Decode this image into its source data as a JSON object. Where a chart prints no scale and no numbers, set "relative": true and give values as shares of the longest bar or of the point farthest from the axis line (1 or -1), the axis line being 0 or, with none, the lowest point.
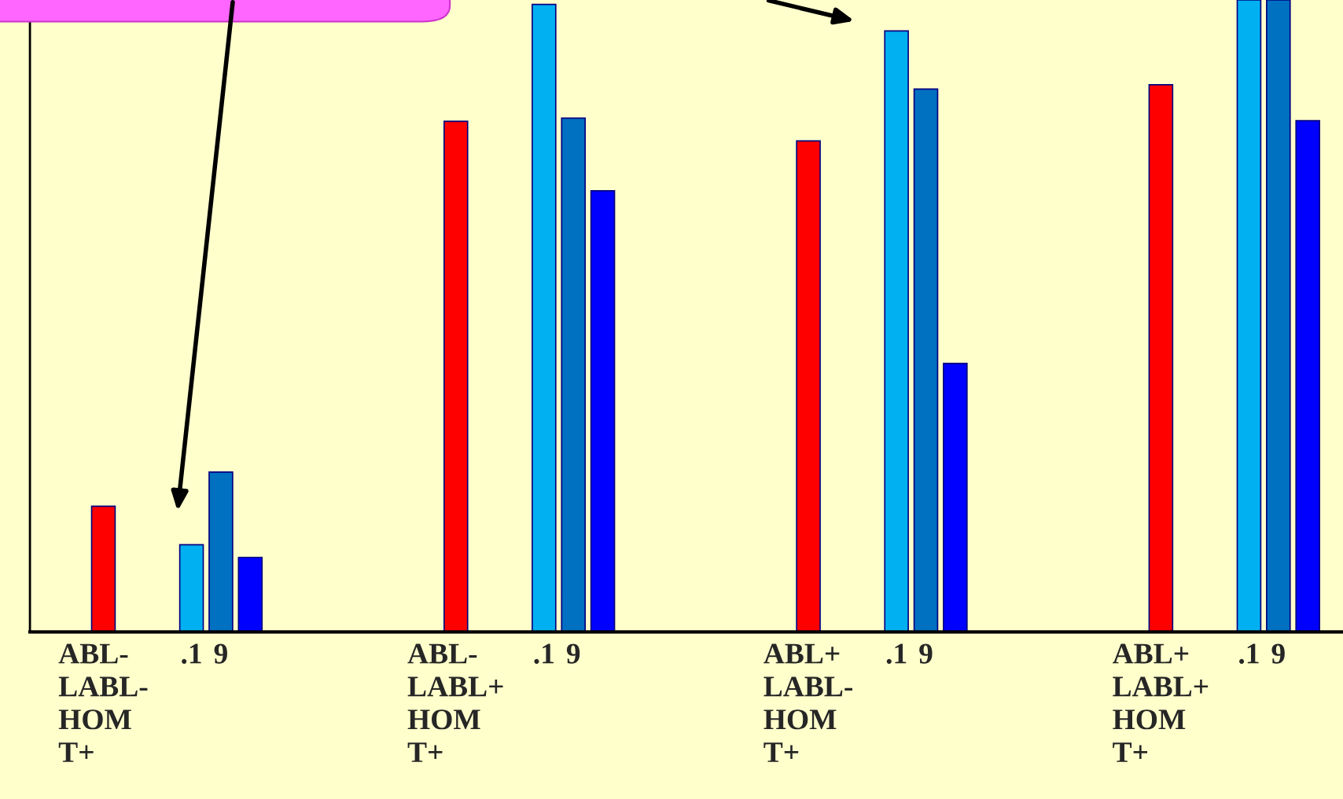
{
  "chart_data": {
    "type": "bar",
    "relative": true,
    "categories": [
      null,
      null,
      "ABL-\nLABL-\nHOM\nT+",
      null,
      null,
      ".1",
      "9",
      null,
      null,
      null,
      null,
      null,
      null,
      null,
      "ABL-\nLABL+\nHOM\nT+",
      null,
      null,
      ".1",
      "9",
      null,
      null,
      null,
      null,
      null,
      null,
      null,
      "ABL+\nLABL-\nHOM\nT+",
      null,
      null,
      ".1",
      "9",
      null,
      null,
      null,
      null,
      null,
      null,
      null,
      "ABL+\nLABL+\nHOM\nT+",
      null,
      null,
      ".1",
      "9",
      null
    ],
    "series": [
      {
        "values": [
          null,
          null,
          0.199,
          null,
          null,
          0.138,
          0.253,
          0.118,
          null,
          null,
          null,
          null,
          null,
          null,
          0.808,
          null,
          null,
          0.993,
          0.813,
          0.698,
          null,
          null,
          null,
          null,
          null,
          null,
          0.777,
          null,
          null,
          0.951,
          0.859,
          0.425,
          null,
          null,
          null,
          null,
          null,
          null,
          0.866,
          null,
          null,
          1,
          1,
          0.809
        ],
        "colors": [
          null,
          null,
          "#ff0000",
          null,
          null,
          "#00b0f0",
          "#0070c0",
          "#0000ff",
          null,
          null,
          null,
          null,
          null,
          null,
          "#ff0000",
          null,
          null,
          "#00b0f0",
          "#0070c0",
          "#0000ff",
          null,
          null,
          null,
          null,
          null,
          null,
          "#ff0000",
          null,
          null,
          "#00b0f0",
          "#0070c0",
          "#0000ff",
          null,
          null,
          null,
          null,
          null,
          null,
          "#ff0000",
          null,
          null,
          "#00b0f0",
          "#0070c0",
          "#0000ff"
        ]
      }
    ],
    "grid": false,
    "legend": false
  }
}
